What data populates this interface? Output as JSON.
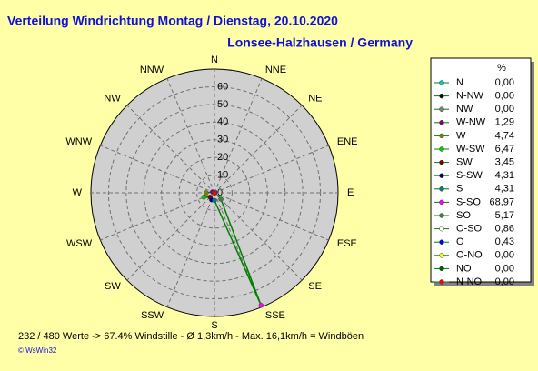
{
  "chart_data": {
    "type": "radar",
    "title": "Verteilung Windrichtung  Montag / Dienstag, 20.10.2020",
    "subtitle": "Lonsee-Halzhausen / Germany",
    "direction": "counterclockwise",
    "categories": [
      "N",
      "NNW",
      "NW",
      "WNW",
      "W",
      "WSW",
      "SW",
      "SSW",
      "S",
      "SSE",
      "SE",
      "ESE",
      "E",
      "ENE",
      "NE",
      "NNE"
    ],
    "point_names": [
      "N",
      "N-NW",
      "NW",
      "W-NW",
      "W",
      "W-SW",
      "SW",
      "S-SW",
      "S",
      "S-SO",
      "SO",
      "O-SO",
      "O",
      "O-NO",
      "NO",
      "N-NO"
    ],
    "point_colors": [
      "#00c8c8",
      "#000000",
      "#808080",
      "#800080",
      "#808000",
      "#00d000",
      "#800000",
      "#000080",
      "#008080",
      "#ff00ff",
      "#408040",
      "#ffffff",
      "#0000ff",
      "#ffff00",
      "#006000",
      "#ff0000"
    ],
    "values": [
      0,
      0,
      0,
      1.29,
      4.74,
      6.47,
      3.45,
      4.31,
      4.31,
      68.97,
      5.17,
      0.86,
      0.43,
      0,
      0,
      0
    ],
    "value_labels": [
      "0,00",
      "0,00",
      "0,00",
      "1,29",
      "4,74",
      "6,47",
      "3,45",
      "4,31",
      "4,31",
      "68,97",
      "5,17",
      "0,86",
      "0,43",
      "0,00",
      "0,00",
      "0,00"
    ],
    "line_color": "#008000",
    "legend_header": "%",
    "ylim": [
      0,
      70
    ],
    "yticks": [
      0,
      10,
      20,
      30,
      40,
      50,
      60
    ],
    "grid": true,
    "footer": "232 / 480 Werte  -> 67.4% Windstille   -   Ø 1,3km/h  -  Max. 16,1km/h = Windböen",
    "credit": "© WsWin32"
  }
}
